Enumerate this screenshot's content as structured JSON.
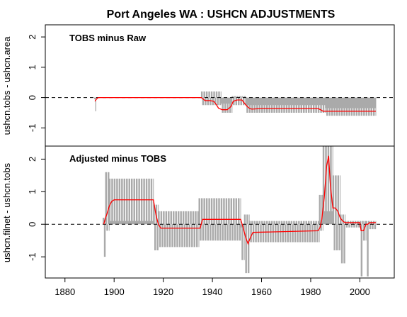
{
  "chart_data": {
    "title": "Port Angeles WA :  USHCN ADJUSTMENTS",
    "type": "line",
    "x_axis": {
      "range": [
        1872,
        2014
      ],
      "ticks": [
        1880,
        1900,
        1920,
        1940,
        1960,
        1980,
        2000
      ],
      "tick_labels": [
        "1880",
        "1900",
        "1920",
        "1940",
        "1960",
        "1980",
        "2000"
      ]
    },
    "colors": {
      "monthly": "#aaaaaa",
      "smooth": "#ff0000",
      "zero": "#000000"
    },
    "panels": [
      {
        "label": "TOBS minus Raw",
        "ylabel": "ushcn.tobs - ushcn.area",
        "ylim": [
          -1.6,
          2.4
        ],
        "yticks": [
          -1,
          0,
          1,
          2
        ],
        "ytick_labels": [
          "-1",
          "0",
          "1",
          "2"
        ],
        "zero_line": 0,
        "series": [
          {
            "kind": "monthly_band",
            "segments": [
              {
                "x": [
                  1892,
                  1892.6
                ],
                "low": -0.45,
                "high": -0.05
              },
              {
                "x": [
                  1892.6,
                  1935.5
                ],
                "low": 0,
                "high": 0
              },
              {
                "x": [
                  1935.5,
                  1943.5
                ],
                "low": -0.25,
                "high": 0.2
              },
              {
                "x": [
                  1943.5,
                  1948
                ],
                "low": -0.5,
                "high": -0.2
              },
              {
                "x": [
                  1948,
                  1953.5
                ],
                "low": -0.25,
                "high": 0.05
              },
              {
                "x": [
                  1953.5,
                  1986
                ],
                "low": -0.5,
                "high": -0.25
              },
              {
                "x": [
                  1986,
                  2006.5
                ],
                "low": -0.6,
                "high": -0.35
              }
            ]
          },
          {
            "kind": "smoothed",
            "x": [
              1892.2,
              1892.8,
              1893.5,
              1935.5,
              1937,
              1939,
              1940.5,
              1941.5,
              1942.5,
              1944,
              1946,
              1947.5,
              1948.5,
              1950,
              1952,
              1953,
              1954,
              1955,
              1956,
              1960,
              1970,
              1980,
              1983,
              1984,
              1985,
              1986,
              1990,
              2000,
              2006.5
            ],
            "y": [
              -0.12,
              -0.05,
              0,
              0,
              -0.1,
              -0.1,
              -0.12,
              -0.22,
              -0.35,
              -0.4,
              -0.4,
              -0.3,
              -0.12,
              -0.08,
              -0.08,
              -0.18,
              -0.28,
              -0.35,
              -0.38,
              -0.36,
              -0.36,
              -0.36,
              -0.36,
              -0.4,
              -0.45,
              -0.45,
              -0.45,
              -0.45,
              -0.45
            ]
          }
        ]
      },
      {
        "label": "Adjusted minus TOBS",
        "ylabel": "ushcn.filnet - ushcn.tobs",
        "ylim": [
          -1.65,
          2.4
        ],
        "yticks": [
          -1,
          0,
          1,
          2
        ],
        "ytick_labels": [
          "-1",
          "0",
          "1",
          "2"
        ],
        "zero_line": 0,
        "series": [
          {
            "kind": "monthly_band",
            "segments": [
              {
                "x": [
                  1895.5,
                  1896.5
                ],
                "low": -1.0,
                "high": 0.2
              },
              {
                "x": [
                  1896.5,
                  1898
                ],
                "low": -0.2,
                "high": 1.6
              },
              {
                "x": [
                  1898,
                  1916
                ],
                "low": 0.1,
                "high": 1.4
              },
              {
                "x": [
                  1916,
                  1918
                ],
                "low": -0.8,
                "high": 0.6
              },
              {
                "x": [
                  1918,
                  1934.5
                ],
                "low": -0.7,
                "high": 0.4
              },
              {
                "x": [
                  1934.5,
                  1951.5
                ],
                "low": -0.5,
                "high": 0.8
              },
              {
                "x": [
                  1951.5,
                  1953
                ],
                "low": -1.1,
                "high": -0.1
              },
              {
                "x": [
                  1953,
                  1955
                ],
                "low": -1.5,
                "high": 0.3
              },
              {
                "x": [
                  1955,
                  1983.5
                ],
                "low": -0.55,
                "high": 0.1
              },
              {
                "x": [
                  1983.5,
                  1985
                ],
                "low": -0.2,
                "high": 0.9
              },
              {
                "x": [
                  1985,
                  1989
                ],
                "low": 0.4,
                "high": 2.4
              },
              {
                "x": [
                  1989,
                  1992
                ],
                "low": -0.8,
                "high": 1.5
              },
              {
                "x": [
                  1992,
                  1994
                ],
                "low": -1.2,
                "high": 0.3
              },
              {
                "x": [
                  1994,
                  2000
                ],
                "low": -0.1,
                "high": 0.1
              },
              {
                "x": [
                  2000,
                  2001
                ],
                "low": -1.6,
                "high": 0.1
              },
              {
                "x": [
                  2001,
                  2002.5
                ],
                "low": -0.5,
                "high": 0.1
              },
              {
                "x": [
                  2002.5,
                  2003.5
                ],
                "low": -1.6,
                "high": 0.1
              },
              {
                "x": [
                  2003.5,
                  2006.5
                ],
                "low": -0.15,
                "high": 0.1
              }
            ]
          },
          {
            "kind": "smoothed",
            "x": [
              1895.8,
              1896.5,
              1897,
              1898,
              1899,
              1900,
              1916,
              1917,
              1918,
              1919,
              1935,
              1936,
              1951.5,
              1952.5,
              1953.5,
              1954.5,
              1955.5,
              1956.5,
              1983,
              1983.8,
              1984.5,
              1985.5,
              1986.5,
              1987.3,
              1988,
              1989,
              1990,
              1991,
              1992,
              1993,
              1994,
              2000,
              2000.5,
              2001.5,
              2002.5,
              2003.2,
              2004,
              2006.5
            ],
            "y": [
              0,
              0.2,
              0.3,
              0.55,
              0.7,
              0.75,
              0.75,
              0.3,
              0,
              -0.12,
              -0.12,
              0.15,
              0.15,
              -0.1,
              -0.4,
              -0.6,
              -0.4,
              -0.25,
              -0.2,
              -0.1,
              0.15,
              0.8,
              1.8,
              2.1,
              1.2,
              0.5,
              0.5,
              0.4,
              0.2,
              0.1,
              0.05,
              0.05,
              -0.2,
              -0.2,
              0,
              0,
              0.05,
              0.05
            ]
          }
        ]
      }
    ]
  }
}
